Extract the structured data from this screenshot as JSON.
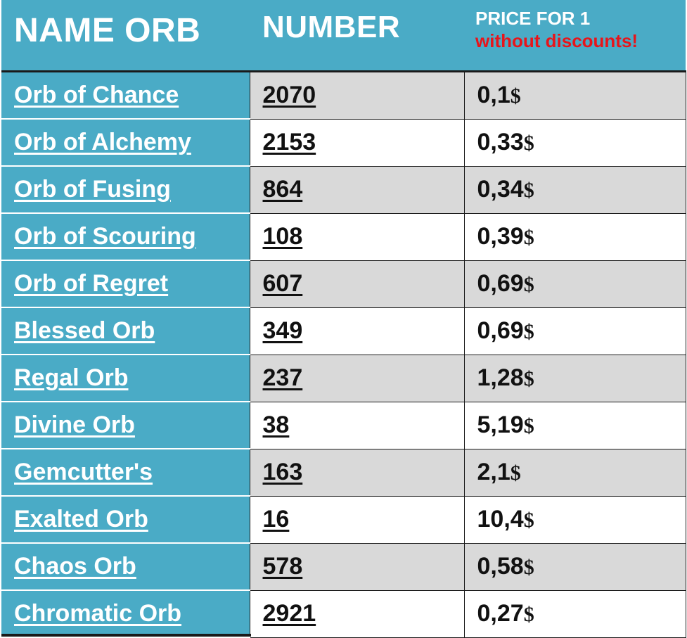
{
  "header": {
    "name_label": "NAME ORB",
    "number_label": "NUMBER",
    "price_label_line1": "PRICE FOR 1",
    "price_label_line2": "without discounts!"
  },
  "colors": {
    "header_bg": "#4aabc6",
    "name_col_bg": "#4aabc6",
    "row_shade": "#d9d9d9",
    "warning_text": "#e8141a"
  },
  "rows": [
    {
      "name": "Orb of Chance",
      "number": "2070",
      "price": "0,1",
      "currency": "$"
    },
    {
      "name": "Orb of Alchemy",
      "number": "2153",
      "price": "0,33",
      "currency": "$"
    },
    {
      "name": "Orb of Fusing",
      "number": "864",
      "price": "0,34",
      "currency": "$"
    },
    {
      "name": "Orb of Scouring",
      "number": "108",
      "price": "0,39",
      "currency": "$"
    },
    {
      "name": "Orb of Regret",
      "number": "607",
      "price": "0,69",
      "currency": "$"
    },
    {
      "name": "Blessed Orb",
      "number": "349",
      "price": "0,69",
      "currency": "$"
    },
    {
      "name": "Regal Orb",
      "number": "237",
      "price": "1,28",
      "currency": "$"
    },
    {
      "name": "Divine Orb",
      "number": "38",
      "price": "5,19",
      "currency": "$"
    },
    {
      "name": "Gemcutter's",
      "number": "163",
      "price": "2,1",
      "currency": "$"
    },
    {
      "name": "Exalted Orb",
      "number": "16",
      "price": "10,4",
      "currency": "$"
    },
    {
      "name": "Chaos Orb",
      "number": "578",
      "price": "0,58",
      "currency": "$"
    },
    {
      "name": "Chromatic Orb",
      "number": "2921",
      "price": "0,27",
      "currency": "$"
    }
  ]
}
